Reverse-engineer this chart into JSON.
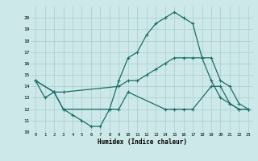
{
  "xlabel": "Humidex (Indice chaleur)",
  "bg_color": "#cce8e8",
  "grid_color": "#aacccc",
  "line_color": "#1a6e6a",
  "xlim": [
    -0.5,
    23.5
  ],
  "ylim": [
    10,
    21
  ],
  "xticks": [
    0,
    1,
    2,
    3,
    4,
    5,
    6,
    7,
    8,
    9,
    10,
    11,
    12,
    13,
    14,
    15,
    16,
    17,
    18,
    19,
    20,
    21,
    22,
    23
  ],
  "yticks": [
    10,
    11,
    12,
    13,
    14,
    15,
    16,
    17,
    18,
    19,
    20
  ],
  "series1_x": [
    0,
    1,
    2,
    3,
    4,
    5,
    6,
    7,
    8,
    9,
    10,
    11,
    12,
    13,
    14,
    15,
    16,
    17,
    18,
    19,
    20,
    21,
    22,
    23
  ],
  "series1_y": [
    14.5,
    13.0,
    13.5,
    12.0,
    11.5,
    11.0,
    10.5,
    10.5,
    12.0,
    14.5,
    16.5,
    17.0,
    18.5,
    19.5,
    20.0,
    20.5,
    20.0,
    19.5,
    16.5,
    14.5,
    13.0,
    12.5,
    12.0,
    12.0
  ],
  "series2_x": [
    0,
    2,
    3,
    9,
    10,
    11,
    12,
    13,
    14,
    15,
    16,
    17,
    18,
    19,
    20,
    21,
    22,
    23
  ],
  "series2_y": [
    14.5,
    13.5,
    13.5,
    14.0,
    14.5,
    14.5,
    15.0,
    15.5,
    16.0,
    16.5,
    16.5,
    16.5,
    16.5,
    16.5,
    14.5,
    14.0,
    12.5,
    12.0
  ],
  "series3_x": [
    0,
    2,
    3,
    8,
    9,
    10,
    14,
    15,
    16,
    17,
    19,
    20,
    21,
    22,
    23
  ],
  "series3_y": [
    14.5,
    13.5,
    12.0,
    12.0,
    12.0,
    13.5,
    12.0,
    12.0,
    12.0,
    12.0,
    14.0,
    14.0,
    12.5,
    12.0,
    12.0
  ]
}
